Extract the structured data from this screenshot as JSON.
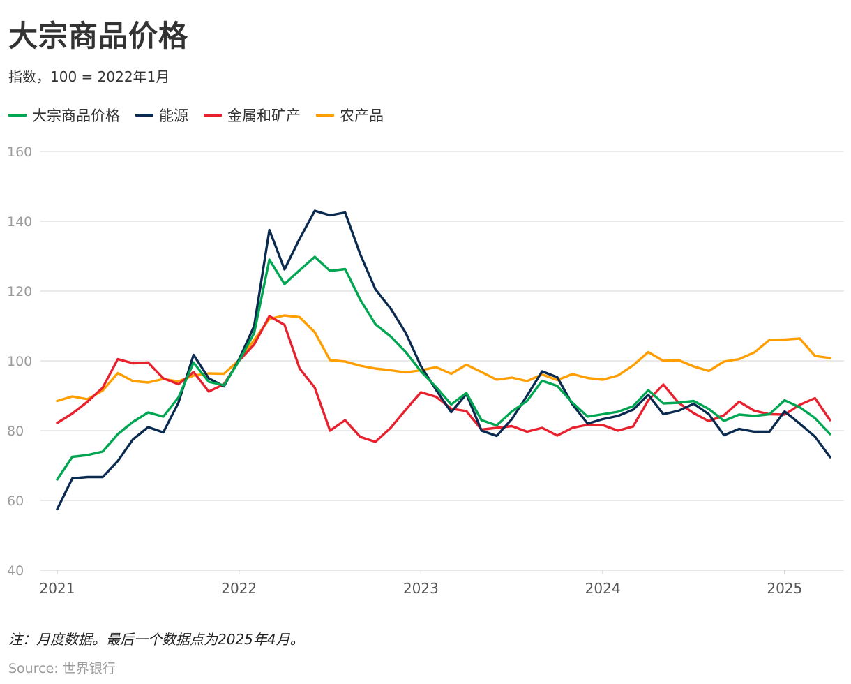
{
  "title": "大宗商品价格",
  "subtitle": "指数，100 = 2022年1月",
  "note": "注：月度数据。最后一个数据点为2025年4月。",
  "source": "Source: 世界银行",
  "colors": {
    "grid": "#dddddd"
  },
  "chart_data": {
    "type": "line",
    "title": "大宗商品价格",
    "subtitle": "指数，100 = 2022年1月",
    "x_start": "2021-01",
    "x_end": "2025-04",
    "x_tick_labels": [
      "2021",
      "2022",
      "2023",
      "2024",
      "2025"
    ],
    "x_ticks": [
      "2021-01",
      "2022-01",
      "2023-01",
      "2024-01",
      "2025-01"
    ],
    "y_ticks": [
      40,
      60,
      80,
      100,
      120,
      140,
      160
    ],
    "ylim": [
      40,
      160
    ],
    "grid": true,
    "legend_position": "top-left",
    "series": [
      {
        "name": "大宗商品价格",
        "color": "#00a651",
        "values": [
          66,
          72.5,
          73,
          74,
          79,
          82.5,
          85.2,
          84,
          89.5,
          99.5,
          94,
          93,
          100,
          108,
          129,
          122,
          126,
          129.8,
          125.8,
          126.3,
          117.5,
          110.5,
          107,
          102.5,
          97,
          92.5,
          87.5,
          90.8,
          83,
          81.5,
          85.5,
          88.5,
          94.3,
          92.8,
          88,
          84,
          84.7,
          85.4,
          87,
          91.6,
          87.8,
          88,
          88.5,
          86.2,
          82.8,
          84.6,
          84.2,
          84.7,
          88.7,
          86.7,
          83.6,
          79
        ]
      },
      {
        "name": "能源",
        "color": "#0b2a50",
        "values": [
          57.5,
          66.3,
          66.7,
          66.7,
          71.3,
          77.5,
          81,
          79.5,
          88,
          101.7,
          95,
          92.7,
          100.4,
          110,
          137.5,
          126.2,
          135,
          143,
          141.7,
          142.5,
          130.5,
          120.5,
          115,
          108,
          98.5,
          91.7,
          85.3,
          90.5,
          80,
          78.5,
          83.3,
          90,
          97,
          95.3,
          87.5,
          82,
          83.3,
          84.2,
          86,
          90.3,
          84.7,
          85.7,
          87.7,
          84.7,
          78.7,
          80.5,
          79.7,
          79.7,
          85.5,
          82,
          78.3,
          72.4
        ]
      },
      {
        "name": "金属和矿产",
        "color": "#e8212f",
        "values": [
          82.2,
          84.9,
          88.3,
          92.3,
          100.5,
          99.3,
          99.5,
          95,
          93.3,
          96.8,
          91.2,
          93.3,
          100,
          104.7,
          112.8,
          110.3,
          97.8,
          92.3,
          80,
          83,
          78.2,
          76.8,
          80.8,
          86,
          91,
          89.7,
          86.3,
          85.6,
          80.3,
          80.8,
          81.3,
          79.7,
          80.8,
          78.6,
          80.8,
          81.7,
          81.6,
          80,
          81.2,
          88.7,
          93.2,
          88,
          85,
          82.7,
          84.4,
          88.3,
          85.7,
          84.7,
          84.6,
          87.4,
          89.3,
          83
        ]
      },
      {
        "name": "农产品",
        "color": "#ff9e00",
        "values": [
          88.5,
          89.8,
          89,
          91.5,
          96.5,
          94.2,
          93.8,
          94.8,
          94.1,
          95.8,
          96.4,
          96.3,
          100.2,
          106,
          112,
          113,
          112.5,
          108.2,
          100.2,
          99.8,
          98.6,
          97.8,
          97.3,
          96.7,
          97.3,
          98.2,
          96.3,
          98.9,
          96.8,
          94.6,
          95.2,
          94.2,
          96.1,
          94.5,
          96.2,
          95.1,
          94.6,
          95.8,
          98.7,
          102.5,
          100,
          100.2,
          98.4,
          97.1,
          99.8,
          100.5,
          102.4,
          106,
          106.1,
          106.4,
          101.4,
          100.8
        ]
      }
    ]
  }
}
